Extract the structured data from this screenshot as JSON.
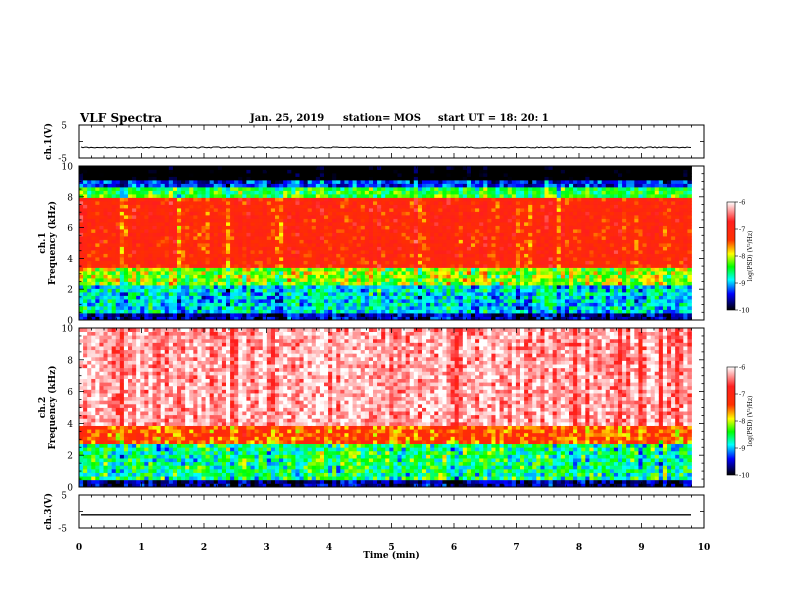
{
  "header": {
    "title": "VLF Spectra",
    "date": "Jan. 25, 2019",
    "station": "station= MOS",
    "start": "start  UT  =   18: 20: 1"
  },
  "chart_data": [
    {
      "type": "line",
      "panel": "ch1-waveform",
      "ylabel": "ch.1(V)",
      "ylim": [
        -5,
        5
      ],
      "y_ticks": [
        "5",
        "-5"
      ],
      "trace_level": -1.8,
      "xlim": [
        0,
        10
      ]
    },
    {
      "type": "heatmap",
      "panel": "ch1-spectrogram",
      "ylabel": "ch.1\nFrequency (kHz)",
      "ylim": [
        0,
        10
      ],
      "y_ticks": [
        "0",
        "2",
        "4",
        "6",
        "8",
        "10"
      ],
      "xlim": [
        0,
        10
      ],
      "data_end_min": 9.8,
      "colorbar": {
        "label": "log(PSD) (V²/Hz)",
        "ticks": [
          "-6",
          "-7",
          "-8",
          "-9",
          "-10"
        ],
        "range": [
          -10,
          -6
        ]
      }
    },
    {
      "type": "heatmap",
      "panel": "ch2-spectrogram",
      "ylabel": "ch.2\nFrequency (kHz)",
      "ylim": [
        0,
        10
      ],
      "y_ticks": [
        "0",
        "2",
        "4",
        "6",
        "8",
        "10"
      ],
      "xlim": [
        0,
        10
      ],
      "data_end_min": 9.8,
      "colorbar": {
        "label": "log(PSD) (V²/Hz)",
        "ticks": [
          "-6",
          "-7",
          "-8",
          "-9",
          "-10"
        ],
        "range": [
          -10,
          -6
        ]
      }
    },
    {
      "type": "line",
      "panel": "ch3-waveform",
      "ylabel": "ch.3(V)",
      "ylim": [
        -5,
        5
      ],
      "y_ticks": [
        "5",
        "-5"
      ],
      "trace_level": -1.0,
      "xlim": [
        0,
        10
      ],
      "xlabel": "Time (min)",
      "x_ticks": [
        "0",
        "1",
        "2",
        "3",
        "4",
        "5",
        "6",
        "7",
        "8",
        "9",
        "10"
      ]
    }
  ],
  "colors": {
    "colormap": [
      "#ffffff",
      "#ff0000",
      "#ffff00",
      "#00ff00",
      "#00ffff",
      "#0000ff",
      "#000000"
    ]
  }
}
